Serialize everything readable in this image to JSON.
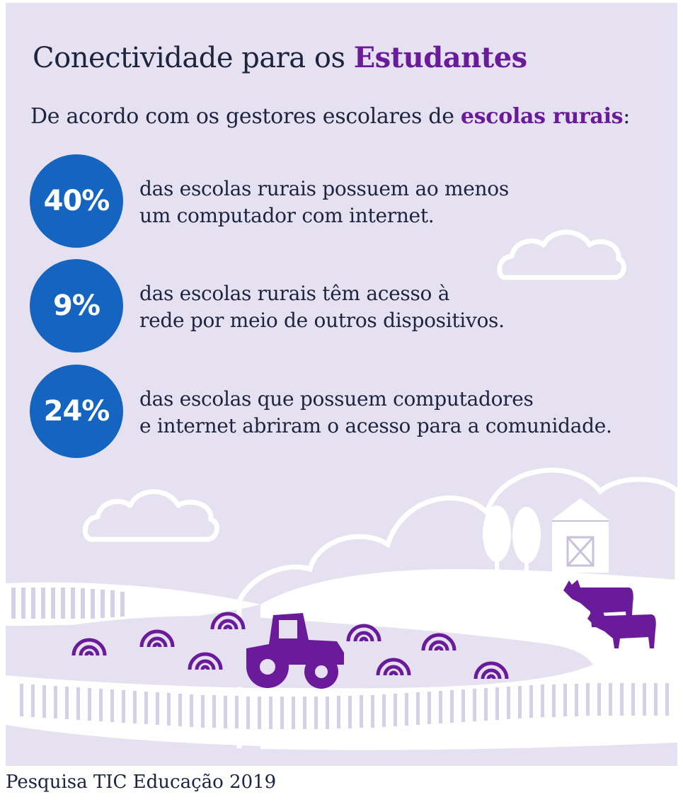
{
  "title": {
    "prefix": "Conectividade para os ",
    "highlight": "Estudantes"
  },
  "subtitle": {
    "prefix": "De acordo com os gestores escolares de ",
    "highlight": "escolas rurais",
    "suffix": ":"
  },
  "stats": [
    {
      "value": "40%",
      "line1": "das escolas rurais possuem ao menos",
      "line2": "um computador com internet."
    },
    {
      "value": "9%",
      "line1": "das escolas rurais têm acesso à",
      "line2": "rede por meio de outros dispositivos."
    },
    {
      "value": "24%",
      "line1": "das escolas que possuem computadores",
      "line2": "e internet abriram o acesso para a comunidade."
    }
  ],
  "source": "Pesquisa TIC Educação 2019",
  "colors": {
    "background": "#e6e1f0",
    "accent_purple": "#6a1b9a",
    "circle_blue": "#1565c0",
    "text_dark": "#1d2440"
  },
  "illustration": {
    "icons": [
      "cloud-icon",
      "tree-icon",
      "barn-icon",
      "cow-icon",
      "tractor-icon",
      "hay-bale-icon",
      "fence-icon"
    ]
  }
}
